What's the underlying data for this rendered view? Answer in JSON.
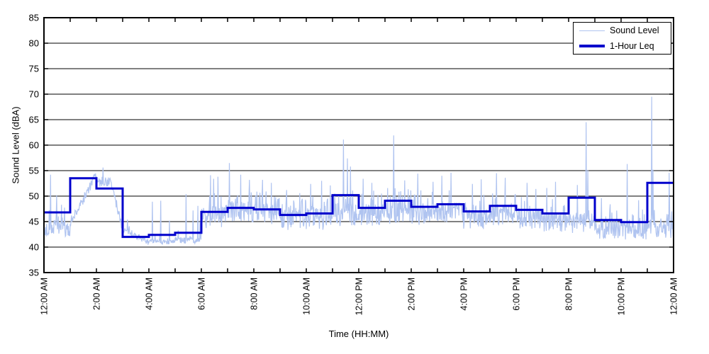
{
  "figure": {
    "kind": "sound-level-time-history-plot",
    "background": "#ffffff",
    "axis_color": "#000000",
    "grid_color": "#000000"
  },
  "axes": {
    "ylabel": "Sound Level (dBA)",
    "xlabel": "Time (HH:MM)"
  },
  "legend": {
    "entries": [
      {
        "label": "Sound Level",
        "color": "#B0C4F0",
        "weight": 1.2
      },
      {
        "label": "1-Hour Leq",
        "color": "#0000CC",
        "weight": 3
      }
    ]
  },
  "chart_data": {
    "type": "line",
    "title": "",
    "xlabel": "Time (HH:MM)",
    "ylabel": "Sound Level (dBA)",
    "ylim": [
      35,
      85
    ],
    "ytick_step": 5,
    "ytick_labels": [
      "35",
      "40",
      "45",
      "50",
      "55",
      "60",
      "65",
      "70",
      "75",
      "80",
      "85"
    ],
    "x_hours": 24,
    "xtick_minor_interval_hours": 1,
    "xtick_label_interval_hours": 2,
    "xtick_labels": [
      "12:00 AM",
      "2:00 AM",
      "4:00 AM",
      "6:00 AM",
      "8:00 AM",
      "10:00 AM",
      "12:00 PM",
      "2:00 PM",
      "4:00 PM",
      "6:00 PM",
      "8:00 PM",
      "10:00 PM",
      "12:00 AM"
    ],
    "grid": "horizontal-only",
    "legend_position": "top-right",
    "samples_per_hour": 60,
    "noise_seed": 7,
    "series": [
      {
        "name": "Sound Level",
        "kind": "minute-profile",
        "color": "#B0C4F0",
        "width": 1.2,
        "hours": [
          {
            "base": 43.2,
            "jitter": 1.6,
            "burst": 3.5,
            "p": 0.2,
            "spikes": [
              [
                15,
                54.2
              ],
              [
                29,
                50.2
              ],
              [
                40,
                48.3
              ]
            ]
          },
          {
            "trend": [
              44.5,
              54.0
            ],
            "hold": 0,
            "jitter": 1.0,
            "burst": 1.5,
            "p": 0.15,
            "spikes": []
          },
          {
            "trend": [
              52.8,
              44.0
            ],
            "hold": 0.55,
            "jitter": 1.0,
            "burst": 1.2,
            "p": 0.1,
            "spikes": [
              [
                15,
                55.6
              ]
            ]
          },
          {
            "trend": [
              43.5,
              41.0
            ],
            "hold": 0,
            "jitter": 0.6,
            "burst": 1.0,
            "p": 0.1,
            "spikes": [
              [
                11,
                45.4
              ]
            ]
          },
          {
            "base": 41.0,
            "jitter": 0.5,
            "burst": 1.2,
            "p": 0.12,
            "spikes": [
              [
                8,
                48.9
              ],
              [
                27,
                49.1
              ],
              [
                47,
                45.2
              ]
            ]
          },
          {
            "base": 41.3,
            "jitter": 0.6,
            "burst": 1.5,
            "p": 0.15,
            "spikes": [
              [
                25,
                50.4
              ],
              [
                41,
                47.2
              ],
              [
                52,
                48.1
              ],
              [
                57,
                45.0
              ]
            ]
          },
          {
            "base": 45.8,
            "jitter": 2.2,
            "burst": 4.0,
            "p": 0.3,
            "spikes": [
              [
                21,
                54.1
              ],
              [
                28,
                53.4
              ],
              [
                38,
                53.8
              ]
            ]
          },
          {
            "base": 46.8,
            "jitter": 2.2,
            "burst": 4.0,
            "p": 0.3,
            "spikes": [
              [
                4,
                56.5
              ],
              [
                30,
                54.2
              ],
              [
                50,
                53.2
              ]
            ]
          },
          {
            "base": 46.6,
            "jitter": 2.2,
            "burst": 4.0,
            "p": 0.3,
            "spikes": [
              [
                20,
                53.2
              ],
              [
                40,
                52.6
              ]
            ]
          },
          {
            "base": 45.2,
            "jitter": 2.0,
            "burst": 3.5,
            "p": 0.28,
            "spikes": [
              [
                15,
                51.2
              ],
              [
                45,
                50.6
              ]
            ]
          },
          {
            "base": 45.5,
            "jitter": 2.1,
            "burst": 3.6,
            "p": 0.28,
            "spikes": [
              [
                10,
                52.4
              ],
              [
                35,
                53.0
              ],
              [
                55,
                52.1
              ]
            ]
          },
          {
            "base": 46.3,
            "jitter": 2.2,
            "burst": 3.8,
            "p": 0.3,
            "spikes": [
              [
                25,
                61.1
              ],
              [
                34,
                57.4
              ],
              [
                41,
                55.8
              ]
            ]
          },
          {
            "base": 46.3,
            "jitter": 2.1,
            "burst": 3.6,
            "p": 0.3,
            "spikes": [
              [
                10,
                53.4
              ],
              [
                30,
                52.6
              ]
            ]
          },
          {
            "base": 46.6,
            "jitter": 2.1,
            "burst": 3.6,
            "p": 0.3,
            "spikes": [
              [
                20,
                61.9
              ],
              [
                45,
                53.1
              ]
            ]
          },
          {
            "base": 46.4,
            "jitter": 2.1,
            "burst": 3.6,
            "p": 0.3,
            "spikes": [
              [
                15,
                54.4
              ],
              [
                50,
                52.8
              ]
            ]
          },
          {
            "base": 46.8,
            "jitter": 2.1,
            "burst": 3.6,
            "p": 0.3,
            "spikes": [
              [
                10,
                54.0
              ],
              [
                31,
                54.6
              ]
            ]
          },
          {
            "base": 45.6,
            "jitter": 2.1,
            "burst": 3.5,
            "p": 0.28,
            "spikes": [
              [
                20,
                52.4
              ],
              [
                40,
                53.3
              ]
            ]
          },
          {
            "base": 46.4,
            "jitter": 2.1,
            "burst": 3.6,
            "p": 0.3,
            "spikes": [
              [
                15,
                54.5
              ],
              [
                35,
                53.6
              ]
            ]
          },
          {
            "base": 45.6,
            "jitter": 2.0,
            "burst": 3.4,
            "p": 0.28,
            "spikes": [
              [
                25,
                52.6
              ],
              [
                45,
                51.4
              ]
            ]
          },
          {
            "base": 44.8,
            "jitter": 2.0,
            "burst": 3.4,
            "p": 0.26,
            "spikes": [
              [
                10,
                51.6
              ],
              [
                30,
                52.8
              ]
            ]
          },
          {
            "base": 44.8,
            "jitter": 2.1,
            "burst": 3.6,
            "p": 0.26,
            "spikes": [
              [
                20,
                52.2
              ],
              [
                40,
                64.5
              ],
              [
                44,
                55.1
              ]
            ]
          },
          {
            "base": 43.4,
            "jitter": 1.8,
            "burst": 3.2,
            "p": 0.24,
            "spikes": [
              [
                15,
                49.6
              ],
              [
                35,
                48.4
              ]
            ]
          },
          {
            "base": 43.2,
            "jitter": 1.8,
            "burst": 3.2,
            "p": 0.24,
            "spikes": [
              [
                14,
                56.3
              ],
              [
                40,
                49.2
              ]
            ]
          },
          {
            "base": 43.8,
            "jitter": 2.0,
            "burst": 3.4,
            "p": 0.26,
            "spikes": [
              [
                10,
                69.5
              ],
              [
                13,
                55.2
              ],
              [
                50,
                54.6
              ]
            ]
          }
        ]
      },
      {
        "name": "1-Hour Leq",
        "kind": "step-hourly",
        "color": "#0000CC",
        "width": 3,
        "values": [
          46.8,
          53.5,
          51.5,
          42.0,
          42.4,
          42.8,
          46.9,
          47.7,
          47.4,
          46.3,
          46.6,
          50.2,
          47.7,
          49.1,
          47.9,
          48.4,
          47.0,
          48.1,
          47.3,
          46.6,
          49.7,
          45.3,
          44.9,
          52.6
        ]
      }
    ]
  }
}
